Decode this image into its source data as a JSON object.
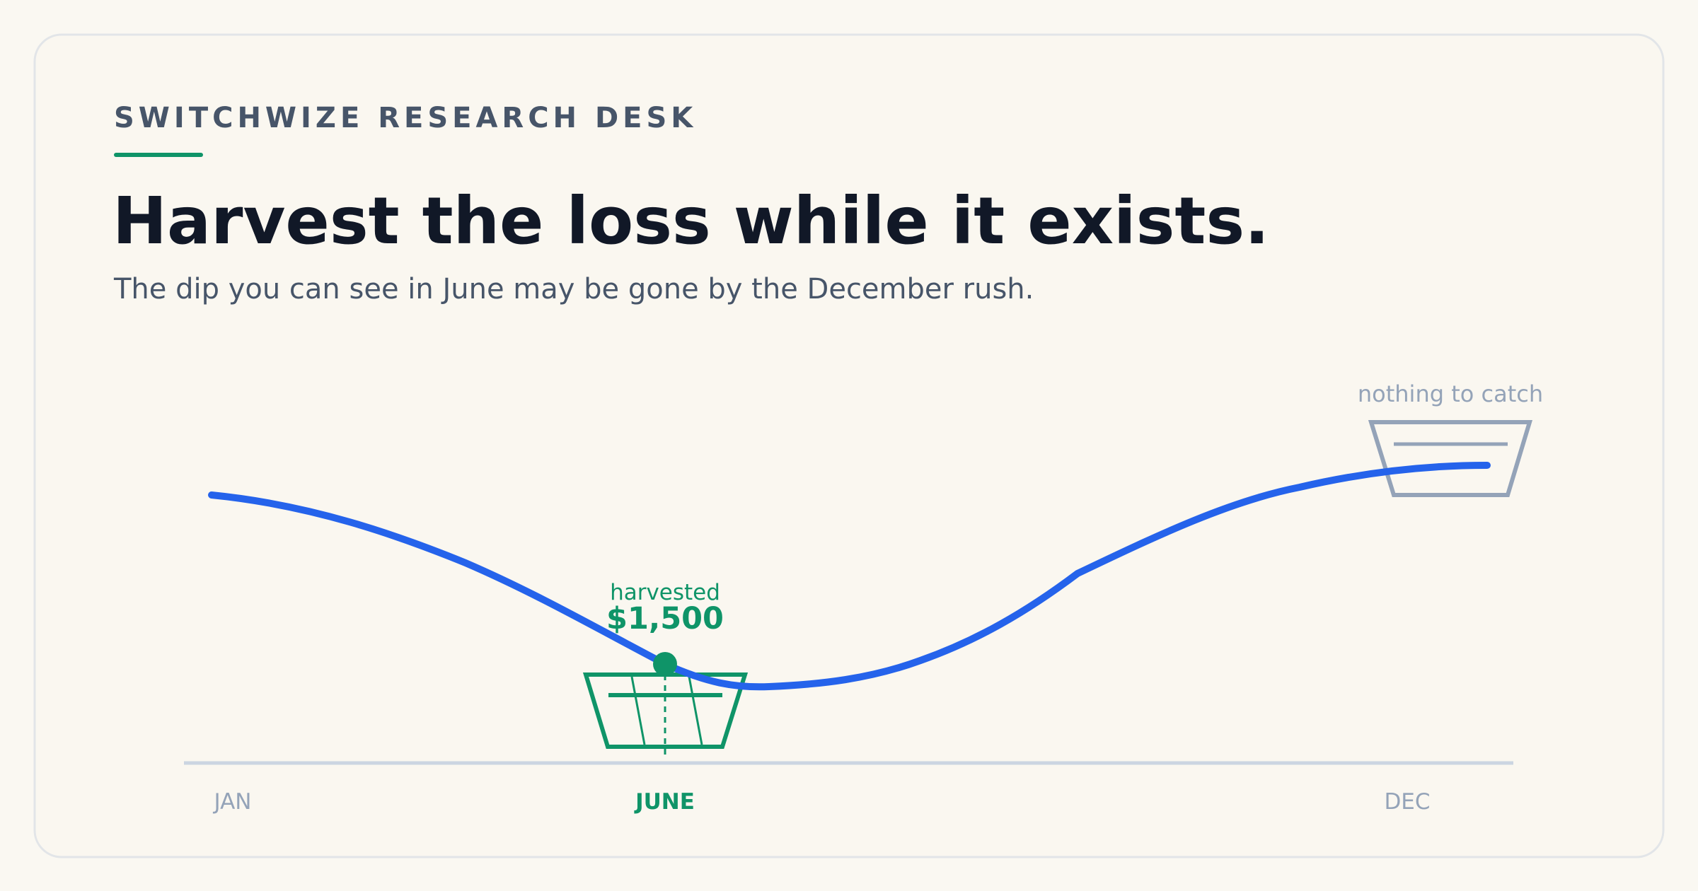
{
  "header": {
    "eyebrow": "SWITCHWIZE RESEARCH DESK",
    "title": "Harvest the loss while it exists.",
    "subtitle": "The dip you can see in June may be gone by the December rush."
  },
  "illustration": {
    "harvest_label": "harvested",
    "harvest_amount": "$1,500",
    "empty_label": "nothing to catch",
    "months": [
      "JAN",
      "JUNE",
      "DEC"
    ]
  }
}
